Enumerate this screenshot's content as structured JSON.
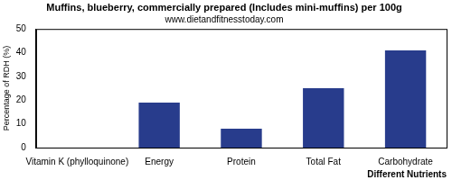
{
  "chart_data": {
    "type": "bar",
    "title": "Muffins, blueberry, commercially prepared (Includes mini-muffins) per 100g",
    "subtitle": "www.dietandfitnesstoday.com",
    "x_label": "Different Nutrients",
    "y_label": "Percentage of RDH (%)",
    "categories": [
      "Vitamin K (phylloquinone)",
      "Energy",
      "Protein",
      "Total Fat",
      "Carbohydrate"
    ],
    "values": [
      0,
      19,
      8,
      25,
      41
    ],
    "color": "#283c8c",
    "ylim": [
      0,
      50
    ],
    "yticks": [
      0,
      10,
      20,
      30,
      40,
      50
    ],
    "grid": false
  }
}
